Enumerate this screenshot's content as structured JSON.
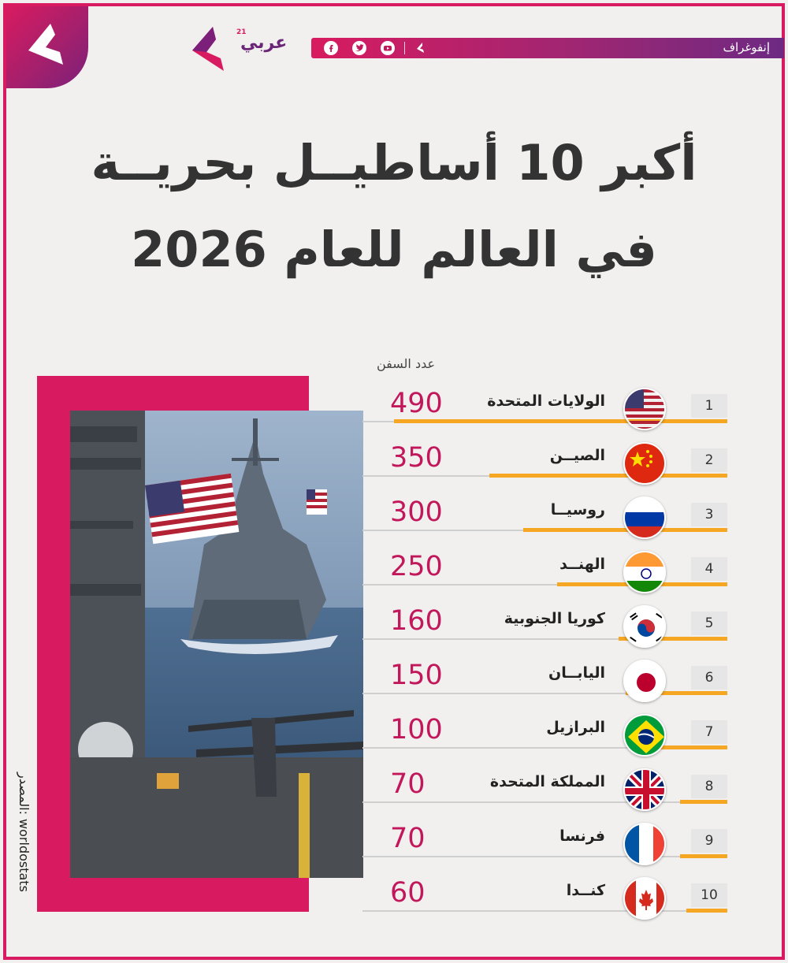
{
  "header": {
    "section_label": "إنفوغراف",
    "brand_name": "عربي",
    "brand_sup": "21",
    "social_icons": [
      "facebook-icon",
      "twitter-icon",
      "youtube-icon"
    ]
  },
  "title": {
    "line1": "أكبر 10 أساطيــل بحريــة",
    "line2": "في العالم للعام 2026"
  },
  "column_header": "عدد السفن",
  "source": "المصدر: worldostats",
  "colors": {
    "accent": "#d81b60",
    "purple": "#6d2a82",
    "bar": "#f5a623",
    "value": "#c2185b"
  },
  "chart_data": {
    "type": "bar",
    "ylabel": "عدد السفن",
    "categories": [
      "الولايات المتحدة",
      "الصيــن",
      "روسيــا",
      "الهنــد",
      "كوريا الجنوبية",
      "اليابــان",
      "البرازيل",
      "المملكة المتحدة",
      "فرنسا",
      "كنــدا"
    ],
    "values": [
      490,
      350,
      300,
      250,
      160,
      150,
      100,
      70,
      70,
      60
    ],
    "ranks": [
      "1",
      "2",
      "3",
      "4",
      "5",
      "6",
      "7",
      "8",
      "9",
      "10"
    ],
    "value_labels": [
      "490",
      "350",
      "300",
      "250",
      "160",
      "150",
      "100",
      "70",
      "70",
      "60"
    ],
    "flags": [
      "usa",
      "china",
      "russia",
      "india",
      "south-korea",
      "japan",
      "brazil",
      "uk",
      "france",
      "canada"
    ],
    "ylim": [
      0,
      490
    ]
  }
}
